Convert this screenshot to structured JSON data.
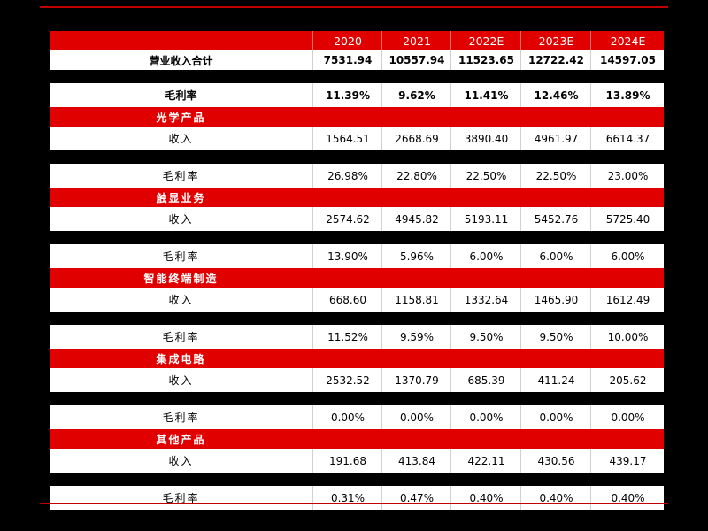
{
  "header": [
    "2020",
    "2021",
    "2022E",
    "2023E",
    "2024E"
  ],
  "total": {
    "label": "营业收入合计",
    "values": [
      "7531.94",
      "10557.94",
      "11523.65",
      "12722.42",
      "14597.05"
    ],
    "margin_label": "毛利率",
    "margins": [
      "11.39%",
      "9.62%",
      "11.41%",
      "12.46%",
      "13.89%"
    ]
  },
  "segments": [
    {
      "name": "光学产品",
      "revenue_label": "收入",
      "revenue": [
        "1564.51",
        "2668.69",
        "3890.40",
        "4961.97",
        "6614.37"
      ],
      "margin_label": "毛利率",
      "margin": [
        "26.98%",
        "22.80%",
        "22.50%",
        "22.50%",
        "23.00%"
      ]
    },
    {
      "name": "触显业务",
      "revenue_label": "收入",
      "revenue": [
        "2574.62",
        "4945.82",
        "5193.11",
        "5452.76",
        "5725.40"
      ],
      "margin_label": "毛利率",
      "margin": [
        "13.90%",
        "5.96%",
        "6.00%",
        "6.00%",
        "6.00%"
      ]
    },
    {
      "name": "智能终端制造",
      "revenue_label": "收入",
      "revenue": [
        "668.60",
        "1158.81",
        "1332.64",
        "1465.90",
        "1612.49"
      ],
      "margin_label": "毛利率",
      "margin": [
        "11.52%",
        "9.59%",
        "9.50%",
        "9.50%",
        "10.00%"
      ]
    },
    {
      "name": "集成电路",
      "revenue_label": "收入",
      "revenue": [
        "2532.52",
        "1370.79",
        "685.39",
        "411.24",
        "205.62"
      ],
      "margin_label": "毛利率",
      "margin": [
        "0.00%",
        "0.00%",
        "0.00%",
        "0.00%",
        "0.00%"
      ]
    },
    {
      "name": "其他产品",
      "revenue_label": "收入",
      "revenue": [
        "191.68",
        "413.84",
        "422.11",
        "430.56",
        "439.17"
      ],
      "margin_label": "毛利率",
      "margin": [
        "0.31%",
        "0.47%",
        "0.40%",
        "0.40%",
        "0.40%"
      ]
    }
  ],
  "colors": {
    "accent_red": "#e00000",
    "rule_red": "#c00000",
    "background": "#000000",
    "cell": "#ffffff"
  }
}
